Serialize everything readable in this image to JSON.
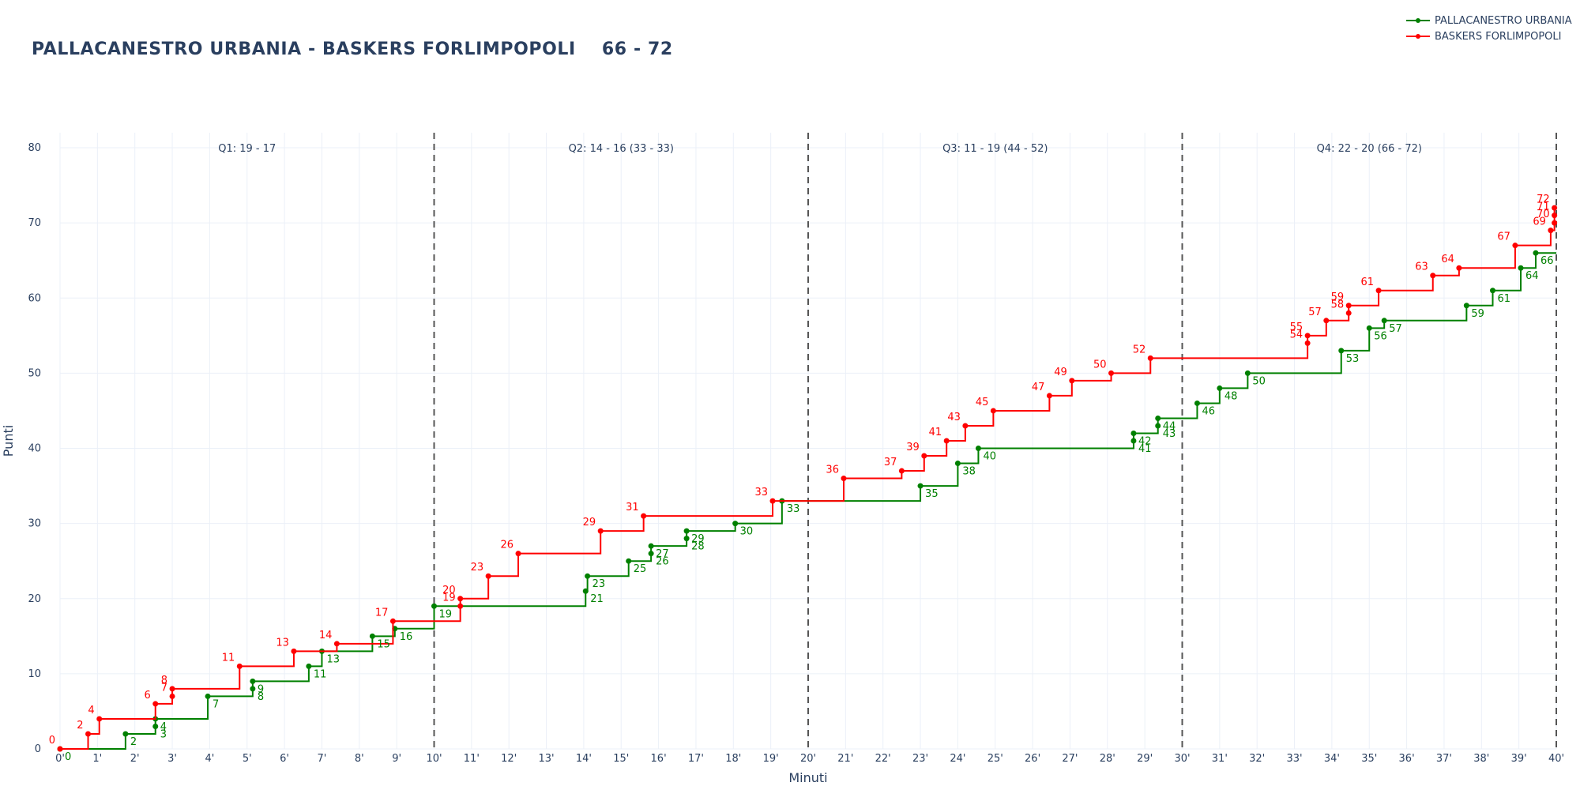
{
  "title": {
    "teams": "PALLACANESTRO URBANIA - BASKERS FORLIMPOPOLI",
    "score": "66 - 72"
  },
  "chart_data": {
    "type": "line",
    "line_shape": "step",
    "title": "PALLACANESTRO URBANIA - BASKERS FORLIMPOPOLI    66 - 72",
    "xlabel": "Minuti",
    "ylabel": "Punti",
    "xlim": [
      0,
      40
    ],
    "ylim": [
      0,
      82
    ],
    "x_ticks": [
      "0'",
      "1'",
      "2'",
      "3'",
      "4'",
      "5'",
      "6'",
      "7'",
      "8'",
      "9'",
      "10'",
      "11'",
      "12'",
      "13'",
      "14'",
      "15'",
      "16'",
      "17'",
      "18'",
      "19'",
      "20'",
      "21'",
      "22'",
      "23'",
      "24'",
      "25'",
      "26'",
      "27'",
      "28'",
      "29'",
      "30'",
      "31'",
      "32'",
      "33'",
      "34'",
      "35'",
      "36'",
      "37'",
      "38'",
      "39'",
      "40'"
    ],
    "y_ticks": [
      0,
      10,
      20,
      30,
      40,
      50,
      60,
      70,
      80
    ],
    "grid": true,
    "legend_position": "top-right",
    "quarter_lines": [
      10,
      20,
      30,
      40
    ],
    "quarter_annotations": [
      {
        "x": 5,
        "text": "Q1: 19 - 17"
      },
      {
        "x": 15,
        "text": "Q2: 14 - 16 (33 - 33)"
      },
      {
        "x": 25,
        "text": "Q3: 11 - 19 (44 - 52)"
      },
      {
        "x": 35,
        "text": "Q4: 22 - 20 (66 - 72)"
      }
    ],
    "series": [
      {
        "name": "PALLACANESTRO URBANIA",
        "color": "#008000",
        "label_side": "below",
        "points": [
          [
            1.75,
            2
          ],
          [
            2.55,
            3
          ],
          [
            2.55,
            4
          ],
          [
            3.95,
            7
          ],
          [
            5.15,
            8
          ],
          [
            5.15,
            9
          ],
          [
            6.65,
            11
          ],
          [
            7.0,
            13
          ],
          [
            8.35,
            15
          ],
          [
            8.95,
            16
          ],
          [
            10.0,
            19
          ],
          [
            14.05,
            21
          ],
          [
            14.1,
            23
          ],
          [
            15.2,
            25
          ],
          [
            15.8,
            26
          ],
          [
            15.8,
            27
          ],
          [
            16.75,
            28
          ],
          [
            16.75,
            29
          ],
          [
            18.05,
            30
          ],
          [
            19.3,
            33
          ],
          [
            23.0,
            35
          ],
          [
            24.0,
            38
          ],
          [
            24.55,
            40
          ],
          [
            28.7,
            41
          ],
          [
            28.7,
            42
          ],
          [
            29.35,
            43
          ],
          [
            29.35,
            44
          ],
          [
            30.4,
            46
          ],
          [
            31.0,
            48
          ],
          [
            31.75,
            50
          ],
          [
            34.25,
            53
          ],
          [
            35.0,
            56
          ],
          [
            35.4,
            57
          ],
          [
            37.6,
            59
          ],
          [
            38.3,
            61
          ],
          [
            39.05,
            64
          ],
          [
            39.45,
            66
          ]
        ]
      },
      {
        "name": "BASKERS FORLIMPOPOLI",
        "color": "#ff0000",
        "label_side": "above",
        "points": [
          [
            0.0,
            0
          ],
          [
            0.75,
            2
          ],
          [
            1.05,
            4
          ],
          [
            2.55,
            6
          ],
          [
            3.0,
            7
          ],
          [
            3.0,
            8
          ],
          [
            4.8,
            11
          ],
          [
            6.25,
            13
          ],
          [
            7.4,
            14
          ],
          [
            8.9,
            17
          ],
          [
            10.7,
            19
          ],
          [
            10.7,
            20
          ],
          [
            11.45,
            23
          ],
          [
            12.25,
            26
          ],
          [
            14.45,
            29
          ],
          [
            15.6,
            31
          ],
          [
            19.05,
            33
          ],
          [
            20.95,
            36
          ],
          [
            22.5,
            37
          ],
          [
            23.1,
            39
          ],
          [
            23.7,
            41
          ],
          [
            24.2,
            43
          ],
          [
            24.95,
            45
          ],
          [
            26.45,
            47
          ],
          [
            27.05,
            49
          ],
          [
            28.1,
            50
          ],
          [
            29.15,
            52
          ],
          [
            33.35,
            54
          ],
          [
            33.35,
            55
          ],
          [
            33.85,
            57
          ],
          [
            34.45,
            58
          ],
          [
            34.45,
            59
          ],
          [
            35.25,
            61
          ],
          [
            36.7,
            63
          ],
          [
            37.4,
            64
          ],
          [
            38.9,
            67
          ],
          [
            39.85,
            69
          ],
          [
            39.95,
            70
          ],
          [
            39.95,
            71
          ],
          [
            39.95,
            72
          ]
        ]
      }
    ]
  }
}
